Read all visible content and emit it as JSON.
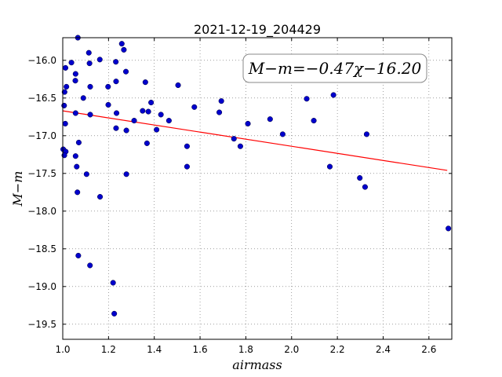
{
  "chart_data": {
    "type": "scatter",
    "title": "2021-12-19_204429",
    "xlabel": "airmass",
    "ylabel": "M−m",
    "xlim": [
      1.0,
      2.7
    ],
    "ylim": [
      -15.7,
      -19.7
    ],
    "xticks": [
      "1.0",
      "1.2",
      "1.4",
      "1.6",
      "1.8",
      "2.0",
      "2.2",
      "2.4",
      "2.6"
    ],
    "yticks": [
      "−16.0",
      "−16.5",
      "−17.0",
      "−17.5",
      "−18.0",
      "−18.5",
      "−19.0",
      "−19.5"
    ],
    "grid": true,
    "annotation": "M−m=−0.47χ−16.20",
    "annotation_position": "top-right",
    "fit": {
      "slope": -0.47,
      "intercept": -16.2,
      "x": [
        1.0,
        2.68
      ],
      "color": "#ff0000"
    },
    "point_color": "#0000cc",
    "points": [
      [
        1.066,
        -15.7
      ],
      [
        1.258,
        -15.78
      ],
      [
        1.267,
        -15.86
      ],
      [
        1.114,
        -15.9
      ],
      [
        1.162,
        -15.99
      ],
      [
        1.038,
        -16.03
      ],
      [
        1.117,
        -16.04
      ],
      [
        1.232,
        -16.02
      ],
      [
        1.012,
        -16.1
      ],
      [
        1.056,
        -16.18
      ],
      [
        1.276,
        -16.15
      ],
      [
        1.055,
        -16.27
      ],
      [
        1.233,
        -16.28
      ],
      [
        1.361,
        -16.29
      ],
      [
        1.504,
        -16.33
      ],
      [
        1.016,
        -16.35
      ],
      [
        1.12,
        -16.35
      ],
      [
        1.198,
        -16.35
      ],
      [
        1.008,
        -16.42
      ],
      [
        1.09,
        -16.5
      ],
      [
        2.183,
        -16.46
      ],
      [
        2.066,
        -16.51
      ],
      [
        1.693,
        -16.54
      ],
      [
        1.386,
        -16.56
      ],
      [
        1.006,
        -16.6
      ],
      [
        1.199,
        -16.59
      ],
      [
        1.575,
        -16.62
      ],
      [
        1.349,
        -16.67
      ],
      [
        1.374,
        -16.68
      ],
      [
        1.056,
        -16.7
      ],
      [
        1.235,
        -16.7
      ],
      [
        1.12,
        -16.72
      ],
      [
        1.684,
        -16.69
      ],
      [
        1.429,
        -16.72
      ],
      [
        1.312,
        -16.8
      ],
      [
        1.464,
        -16.8
      ],
      [
        1.906,
        -16.78
      ],
      [
        2.097,
        -16.8
      ],
      [
        1.011,
        -16.84
      ],
      [
        1.809,
        -16.84
      ],
      [
        1.233,
        -16.9
      ],
      [
        1.41,
        -16.92
      ],
      [
        1.278,
        -16.93
      ],
      [
        1.961,
        -16.98
      ],
      [
        2.328,
        -16.98
      ],
      [
        1.748,
        -17.04
      ],
      [
        1.07,
        -17.09
      ],
      [
        1.368,
        -17.1
      ],
      [
        1.543,
        -17.14
      ],
      [
        1.776,
        -17.14
      ],
      [
        1.002,
        -17.18
      ],
      [
        1.013,
        -17.21
      ],
      [
        1.007,
        -17.26
      ],
      [
        1.056,
        -17.27
      ],
      [
        1.061,
        -17.41
      ],
      [
        1.543,
        -17.41
      ],
      [
        2.167,
        -17.41
      ],
      [
        1.104,
        -17.51
      ],
      [
        1.278,
        -17.51
      ],
      [
        2.298,
        -17.56
      ],
      [
        2.321,
        -17.68
      ],
      [
        1.064,
        -17.75
      ],
      [
        1.163,
        -17.81
      ],
      [
        2.685,
        -18.23
      ],
      [
        1.068,
        -18.59
      ],
      [
        1.119,
        -18.72
      ],
      [
        1.22,
        -18.95
      ],
      [
        1.225,
        -19.36
      ]
    ]
  }
}
